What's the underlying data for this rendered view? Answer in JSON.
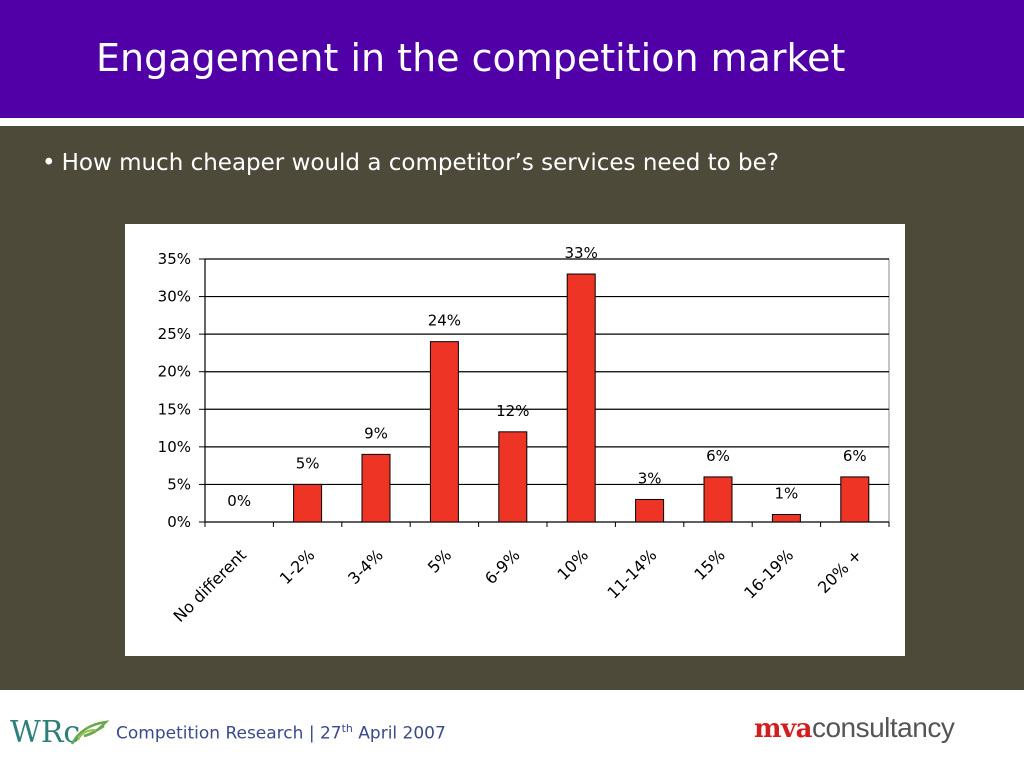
{
  "slide": {
    "title": "Engagement in the competition market",
    "bullet_symbol": "•",
    "bullet": "How much cheaper would a competitor’s services need to be?"
  },
  "footer": {
    "org_logo_text": "WRc",
    "text_prefix": "Competition Research | 27",
    "text_sup": "th",
    "text_suffix": " April 2007",
    "brand_part1": "mva",
    "brand_part2": "consultancy"
  },
  "colors": {
    "header_bg": "#5000a6",
    "body_bg": "#4d4a3a",
    "bar_fill": "#ee3424",
    "brand_red": "#d21e1e"
  },
  "chart_data": {
    "type": "bar",
    "categories": [
      "No different",
      "1-2%",
      "3-4%",
      "5%",
      "6-9%",
      "10%",
      "11-14%",
      "15%",
      "16-19%",
      "20% +"
    ],
    "values": [
      0,
      5,
      9,
      24,
      12,
      33,
      3,
      6,
      1,
      6
    ],
    "data_labels": [
      "0%",
      "5%",
      "9%",
      "24%",
      "12%",
      "33%",
      "3%",
      "6%",
      "1%",
      "6%"
    ],
    "yticks": [
      0,
      5,
      10,
      15,
      20,
      25,
      30,
      35
    ],
    "ytick_labels": [
      "0%",
      "5%",
      "10%",
      "15%",
      "20%",
      "25%",
      "30%",
      "35%"
    ],
    "ylim": [
      0,
      35
    ],
    "grid": true,
    "legend": false
  }
}
